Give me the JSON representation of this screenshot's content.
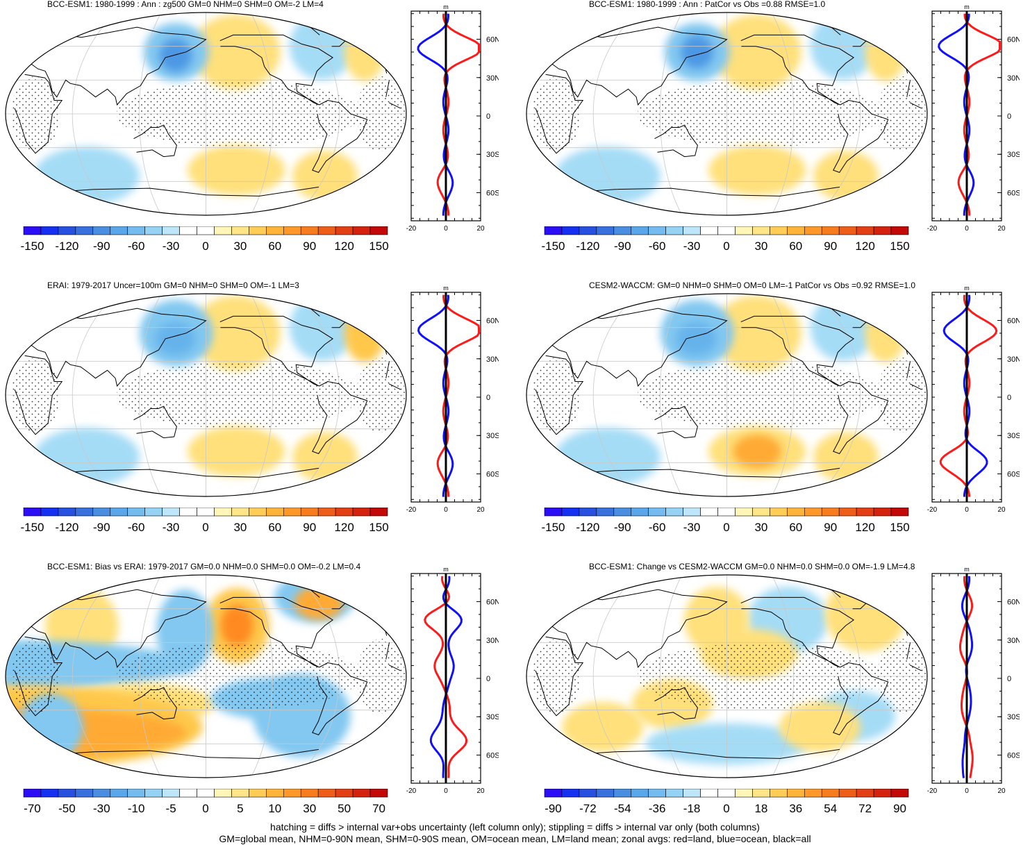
{
  "panels": [
    {
      "title": "BCC-ESM1: 1980-1999 : Ann : zg500 GM=0 NHM=0 SHM=0 OM=-2 LM=4",
      "colorbar": {
        "labels": [
          "-150",
          "-120",
          "-90",
          "-60",
          "-30",
          "0",
          "30",
          "60",
          "90",
          "120",
          "150"
        ],
        "levels": 21
      },
      "zonal": {
        "unit": "m",
        "xticks": [
          "-20",
          "0",
          "20"
        ],
        "ylabels": [
          "60N",
          "30N",
          "0",
          "30S",
          "60S"
        ]
      },
      "blobs": [
        {
          "lon": -150,
          "lat": 55,
          "rx": 0.11,
          "ry": 0.09,
          "v": 1
        },
        {
          "lon": 150,
          "lat": 55,
          "rx": 0.08,
          "ry": 0.07,
          "v": -2
        },
        {
          "lon": 150,
          "lat": 52,
          "rx": 0.04,
          "ry": 0.04,
          "v": -4
        },
        {
          "lon": -60,
          "lat": 60,
          "rx": 0.08,
          "ry": 0.08,
          "v": -1
        },
        {
          "lon": -20,
          "lat": 55,
          "rx": 0.05,
          "ry": 0.07,
          "v": 1
        },
        {
          "lon": 60,
          "lat": -55,
          "rx": 0.13,
          "ry": 0.07,
          "v": -1
        },
        {
          "lon": -150,
          "lat": -50,
          "rx": 0.12,
          "ry": 0.06,
          "v": 1
        },
        {
          "lon": -60,
          "lat": -55,
          "rx": 0.08,
          "ry": 0.06,
          "v": 1
        }
      ]
    },
    {
      "title": "BCC-ESM1: 1980-1999 : Ann : PatCor vs Obs =0.88 RMSE=1.0",
      "colorbar": {
        "labels": [
          "-150",
          "-120",
          "-90",
          "-60",
          "-30",
          "0",
          "30",
          "60",
          "90",
          "120",
          "150"
        ],
        "levels": 21
      },
      "zonal": {
        "unit": "m",
        "xticks": [
          "-20",
          "0",
          "20"
        ],
        "ylabels": [
          "60N",
          "30N",
          "0",
          "30S",
          "60S"
        ]
      },
      "blobs": [
        {
          "lon": -150,
          "lat": 55,
          "rx": 0.11,
          "ry": 0.09,
          "v": 1
        },
        {
          "lon": 150,
          "lat": 55,
          "rx": 0.08,
          "ry": 0.07,
          "v": -2
        },
        {
          "lon": 150,
          "lat": 55,
          "rx": 0.04,
          "ry": 0.04,
          "v": -4
        },
        {
          "lon": -60,
          "lat": 60,
          "rx": 0.08,
          "ry": 0.08,
          "v": -1
        },
        {
          "lon": -20,
          "lat": 55,
          "rx": 0.05,
          "ry": 0.07,
          "v": 1
        },
        {
          "lon": 60,
          "lat": -55,
          "rx": 0.13,
          "ry": 0.07,
          "v": -1
        },
        {
          "lon": -150,
          "lat": -50,
          "rx": 0.12,
          "ry": 0.06,
          "v": 1
        },
        {
          "lon": -60,
          "lat": -55,
          "rx": 0.08,
          "ry": 0.06,
          "v": 1
        }
      ]
    },
    {
      "title": "ERAI: 1979-2017 Uncer=100m GM=0 NHM=0 SHM=0 OM=-1 LM=3",
      "colorbar": {
        "labels": [
          "-150",
          "-120",
          "-90",
          "-60",
          "-30",
          "0",
          "30",
          "60",
          "90",
          "120",
          "150"
        ],
        "levels": 21
      },
      "zonal": {
        "unit": "m",
        "xticks": [
          "-20",
          "0",
          "20"
        ],
        "ylabels": [
          "60N",
          "30N",
          "0",
          "30S",
          "60S"
        ]
      },
      "blobs": [
        {
          "lon": -150,
          "lat": 55,
          "rx": 0.11,
          "ry": 0.09,
          "v": 1
        },
        {
          "lon": 150,
          "lat": 55,
          "rx": 0.09,
          "ry": 0.08,
          "v": -2
        },
        {
          "lon": 150,
          "lat": 50,
          "rx": 0.05,
          "ry": 0.04,
          "v": -3
        },
        {
          "lon": -60,
          "lat": 60,
          "rx": 0.08,
          "ry": 0.08,
          "v": -1
        },
        {
          "lon": -20,
          "lat": 55,
          "rx": 0.05,
          "ry": 0.07,
          "v": 2
        },
        {
          "lon": 60,
          "lat": -55,
          "rx": 0.13,
          "ry": 0.07,
          "v": -1
        },
        {
          "lon": -150,
          "lat": -50,
          "rx": 0.12,
          "ry": 0.06,
          "v": 1
        },
        {
          "lon": -60,
          "lat": -55,
          "rx": 0.08,
          "ry": 0.06,
          "v": 1
        }
      ]
    },
    {
      "title": "CESM2-WACCM: GM=0 NHM=0 SHM=0 OM=0 LM=-1 PatCor vs Obs =0.92 RMSE=1.0",
      "colorbar": {
        "labels": [
          "-150",
          "-120",
          "-90",
          "-60",
          "-30",
          "0",
          "30",
          "60",
          "90",
          "120",
          "150"
        ],
        "levels": 21
      },
      "zonal": {
        "unit": "m",
        "xticks": [
          "-20",
          "0",
          "20"
        ],
        "ylabels": [
          "60N",
          "30N",
          "0",
          "30S",
          "60S"
        ]
      },
      "blobs": [
        {
          "lon": -150,
          "lat": 55,
          "rx": 0.11,
          "ry": 0.09,
          "v": 1
        },
        {
          "lon": 150,
          "lat": 55,
          "rx": 0.09,
          "ry": 0.08,
          "v": -2
        },
        {
          "lon": 150,
          "lat": 50,
          "rx": 0.05,
          "ry": 0.04,
          "v": -3
        },
        {
          "lon": -60,
          "lat": 60,
          "rx": 0.08,
          "ry": 0.08,
          "v": -1
        },
        {
          "lon": -20,
          "lat": 55,
          "rx": 0.05,
          "ry": 0.07,
          "v": 1
        },
        {
          "lon": 60,
          "lat": -55,
          "rx": 0.13,
          "ry": 0.07,
          "v": -1
        },
        {
          "lon": -150,
          "lat": -50,
          "rx": 0.12,
          "ry": 0.06,
          "v": 1
        },
        {
          "lon": -150,
          "lat": -50,
          "rx": 0.06,
          "ry": 0.04,
          "v": 3
        },
        {
          "lon": -60,
          "lat": -55,
          "rx": 0.08,
          "ry": 0.06,
          "v": 1
        }
      ]
    },
    {
      "title": "BCC-ESM1: Bias vs ERAI: 1979-2017 GM=0.0 NHM=0.0 SHM=0.0 OM=-0.2 LM=0.4",
      "colorbar": {
        "labels": [
          "-70",
          "-50",
          "-30",
          "-10",
          "-5",
          "0",
          "5",
          "10",
          "30",
          "50",
          "70"
        ],
        "levels": 21
      },
      "zonal": {
        "unit": "m",
        "xticks": [
          "-20",
          "0",
          "20"
        ],
        "ylabels": [
          "60N",
          "30N",
          "0",
          "30S",
          "60S"
        ]
      },
      "blobs": [
        {
          "lon": -150,
          "lat": 45,
          "rx": 0.08,
          "ry": 0.09,
          "v": 2
        },
        {
          "lon": -150,
          "lat": 45,
          "rx": 0.04,
          "ry": 0.05,
          "v": 4
        },
        {
          "lon": 60,
          "lat": 45,
          "rx": 0.09,
          "ry": 0.09,
          "v": 1
        },
        {
          "lon": 160,
          "lat": 40,
          "rx": 0.07,
          "ry": 0.1,
          "v": -2
        },
        {
          "lon": -60,
          "lat": 70,
          "rx": 0.1,
          "ry": 0.06,
          "v": -2
        },
        {
          "lon": -60,
          "lat": 65,
          "rx": 0.06,
          "ry": 0.04,
          "v": 3
        },
        {
          "lon": 0,
          "lat": 10,
          "rx": 0.45,
          "ry": 0.06,
          "v": -2
        },
        {
          "lon": 120,
          "lat": -25,
          "rx": 0.18,
          "ry": 0.05,
          "v": 1
        },
        {
          "lon": -120,
          "lat": -20,
          "rx": 0.15,
          "ry": 0.05,
          "v": -2
        },
        {
          "lon": 0,
          "lat": -45,
          "rx": 0.45,
          "ry": 0.1,
          "v": 2
        },
        {
          "lon": 0,
          "lat": -50,
          "rx": 0.4,
          "ry": 0.06,
          "v": 3
        },
        {
          "lon": -90,
          "lat": -35,
          "rx": 0.12,
          "ry": 0.1,
          "v": -2
        },
        {
          "lon": 30,
          "lat": -45,
          "rx": 0.08,
          "ry": 0.08,
          "v": -2
        }
      ]
    },
    {
      "title": "BCC-ESM1: Change vs CESM2-WACCM GM=0.0 NHM=0.0 SHM=0.0 OM=-1.9 LM=4.8",
      "colorbar": {
        "labels": [
          "-90",
          "-72",
          "-54",
          "-36",
          "-18",
          "0",
          "18",
          "36",
          "54",
          "72",
          "90"
        ],
        "levels": 21
      },
      "zonal": {
        "unit": "m",
        "xticks": [
          "-20",
          "0",
          "20"
        ],
        "ylabels": [
          "60N",
          "30N",
          "0",
          "30S",
          "60S"
        ]
      },
      "blobs": [
        {
          "lon": -120,
          "lat": 50,
          "rx": 0.1,
          "ry": 0.08,
          "v": -1
        },
        {
          "lon": 170,
          "lat": 50,
          "rx": 0.08,
          "ry": 0.08,
          "v": 1
        },
        {
          "lon": -40,
          "lat": 55,
          "rx": 0.1,
          "ry": 0.09,
          "v": 1
        },
        {
          "lon": -160,
          "lat": 20,
          "rx": 0.12,
          "ry": 0.06,
          "v": 1
        },
        {
          "lon": 130,
          "lat": -25,
          "rx": 0.1,
          "ry": 0.06,
          "v": 1
        },
        {
          "lon": -60,
          "lat": -35,
          "rx": 0.1,
          "ry": 0.06,
          "v": -1
        },
        {
          "lon": 180,
          "lat": -60,
          "rx": 0.2,
          "ry": 0.05,
          "v": -1
        },
        {
          "lon": 60,
          "lat": -45,
          "rx": 0.1,
          "ry": 0.06,
          "v": 1
        },
        {
          "lon": -90,
          "lat": -45,
          "rx": 0.1,
          "ry": 0.06,
          "v": 1
        }
      ]
    }
  ],
  "footer": {
    "line1": "hatching = diffs > internal var+obs uncertainty (left column only); stippling = diffs > internal var only (both columns)",
    "line2": "GM=global mean, NHM=0-90N mean, SHM=0-90S mean, OM=ocean mean, LM=land mean; zonal avgs: red=land, blue=ocean, black=all"
  },
  "colors": {
    "palette": [
      "#2e0aff",
      "#1a2ef0",
      "#2a57e6",
      "#3a78e0",
      "#4e98e4",
      "#66b3ec",
      "#82c8f0",
      "#a4dcf6",
      "#ffffff",
      "#ffffff",
      "#fff2a8",
      "#ffe07a",
      "#ffc84c",
      "#ffaa34",
      "#ff8a22",
      "#f2681a",
      "#e84a14",
      "#d62a0e",
      "#c40808"
    ],
    "land_line": "#000000",
    "ocean_line": "#1010ff",
    "land_avg": "#ff1a1a",
    "all_avg": "#000000"
  }
}
